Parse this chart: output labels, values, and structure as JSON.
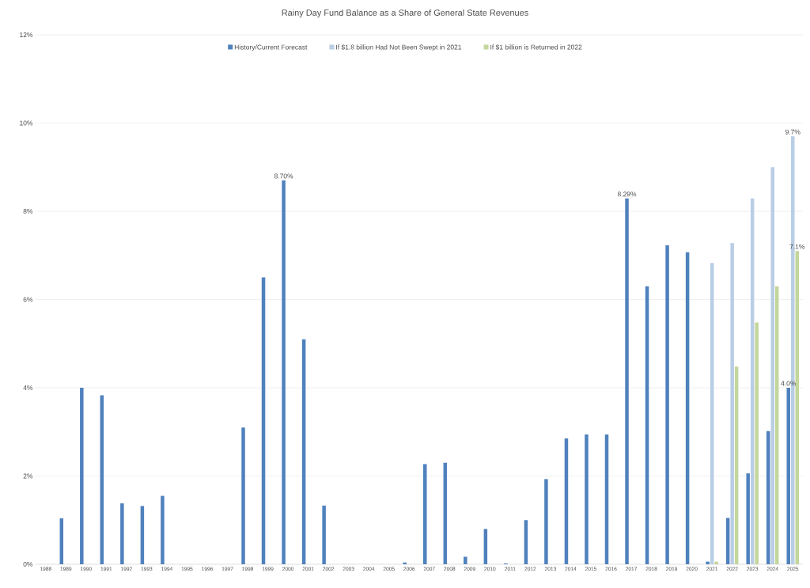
{
  "chart_data": {
    "type": "bar",
    "title": "Rainy Day Fund Balance as a Share of General State Revenues",
    "categories": [
      "1988",
      "1989",
      "1990",
      "1991",
      "1992",
      "1993",
      "1994",
      "1995",
      "1996",
      "1997",
      "1998",
      "1999",
      "2000",
      "2001",
      "2002",
      "2003",
      "2004",
      "2005",
      "2006",
      "2007",
      "2008",
      "2009",
      "2010",
      "2011",
      "2012",
      "2013",
      "2014",
      "2015",
      "2016",
      "2017",
      "2018",
      "2019",
      "2020",
      "2021",
      "2022",
      "2023",
      "2024",
      "2025"
    ],
    "series": [
      {
        "name": "History/Current Forecast",
        "color": "#4f81bd",
        "values": [
          0,
          1.04,
          4.0,
          3.83,
          1.38,
          1.32,
          1.55,
          0,
          0,
          0,
          3.1,
          6.5,
          8.7,
          5.1,
          1.33,
          0,
          0,
          0,
          0.04,
          2.27,
          2.3,
          0.17,
          0.8,
          0.02,
          1.0,
          1.93,
          2.85,
          2.94,
          2.94,
          8.29,
          6.3,
          7.23,
          7.07,
          0.06,
          1.05,
          2.06,
          3.02,
          4.0
        ],
        "value_labels": [
          null,
          null,
          null,
          null,
          null,
          null,
          null,
          null,
          null,
          null,
          null,
          null,
          "8.70%",
          null,
          null,
          null,
          null,
          null,
          null,
          null,
          null,
          null,
          null,
          null,
          null,
          null,
          null,
          null,
          null,
          "8.29%",
          null,
          null,
          null,
          null,
          null,
          null,
          null,
          "4.0%"
        ]
      },
      {
        "name": "If $1.8 billion Had Not Been Swept in 2021",
        "color": "#b9cde5",
        "values": [
          null,
          null,
          null,
          null,
          null,
          null,
          null,
          null,
          null,
          null,
          null,
          null,
          null,
          null,
          null,
          null,
          null,
          null,
          null,
          null,
          null,
          null,
          null,
          null,
          null,
          null,
          null,
          null,
          null,
          null,
          null,
          null,
          null,
          6.83,
          7.28,
          8.29,
          9.0,
          9.7
        ],
        "value_labels": [
          null,
          null,
          null,
          null,
          null,
          null,
          null,
          null,
          null,
          null,
          null,
          null,
          null,
          null,
          null,
          null,
          null,
          null,
          null,
          null,
          null,
          null,
          null,
          null,
          null,
          null,
          null,
          null,
          null,
          null,
          null,
          null,
          null,
          null,
          null,
          null,
          null,
          "9.7%"
        ]
      },
      {
        "name": "If $1 billion is Returned in 2022",
        "color": "#c3d69b",
        "values": [
          null,
          null,
          null,
          null,
          null,
          null,
          null,
          null,
          null,
          null,
          null,
          null,
          null,
          null,
          null,
          null,
          null,
          null,
          null,
          null,
          null,
          null,
          null,
          null,
          null,
          null,
          null,
          null,
          null,
          null,
          null,
          null,
          null,
          0.06,
          4.48,
          5.48,
          6.3,
          7.1
        ],
        "value_labels": [
          null,
          null,
          null,
          null,
          null,
          null,
          null,
          null,
          null,
          null,
          null,
          null,
          null,
          null,
          null,
          null,
          null,
          null,
          null,
          null,
          null,
          null,
          null,
          null,
          null,
          null,
          null,
          null,
          null,
          null,
          null,
          null,
          null,
          null,
          null,
          null,
          null,
          "7.1%"
        ]
      }
    ],
    "ylim": [
      0,
      12
    ],
    "yticks": [
      {
        "value": 0,
        "label": "0%"
      },
      {
        "value": 2,
        "label": "2%"
      },
      {
        "value": 4,
        "label": "4%"
      },
      {
        "value": 6,
        "label": "6%"
      },
      {
        "value": 8,
        "label": "8%"
      },
      {
        "value": 10,
        "label": "10%"
      },
      {
        "value": 12,
        "label": "12%"
      }
    ],
    "grid": "y",
    "legend": "top"
  }
}
